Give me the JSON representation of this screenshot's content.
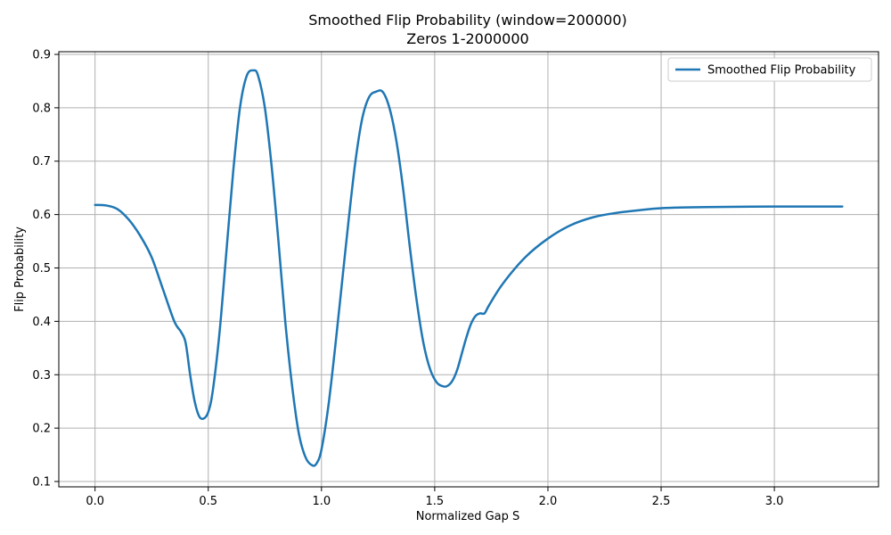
{
  "chart_data": {
    "type": "line",
    "title": "Smoothed Flip Probability (window=200000)",
    "subtitle": "Zeros 1-2000000",
    "xlabel": "Normalized Gap S",
    "ylabel": "Flip Probability",
    "xlim": [
      -0.16,
      3.46
    ],
    "ylim": [
      0.09,
      0.905
    ],
    "xticks": [
      0.0,
      0.5,
      1.0,
      1.5,
      2.0,
      2.5,
      3.0
    ],
    "xtick_labels": [
      "0.0",
      "0.5",
      "1.0",
      "1.5",
      "2.0",
      "2.5",
      "3.0"
    ],
    "yticks": [
      0.1,
      0.2,
      0.3,
      0.4,
      0.5,
      0.6,
      0.7,
      0.8,
      0.9
    ],
    "ytick_labels": [
      "0.1",
      "0.2",
      "0.3",
      "0.4",
      "0.5",
      "0.6",
      "0.7",
      "0.8",
      "0.9"
    ],
    "grid": true,
    "legend_position": "top-right",
    "colors": {
      "series": "#1f77b4",
      "grid": "#b0b0b0",
      "axis": "#000000"
    },
    "series": [
      {
        "name": "Smoothed Flip Probability",
        "x": [
          0.0,
          0.05,
          0.1,
          0.15,
          0.2,
          0.25,
          0.3,
          0.35,
          0.38,
          0.4,
          0.42,
          0.44,
          0.46,
          0.48,
          0.5,
          0.52,
          0.55,
          0.58,
          0.61,
          0.64,
          0.67,
          0.7,
          0.72,
          0.75,
          0.78,
          0.81,
          0.84,
          0.87,
          0.9,
          0.93,
          0.96,
          0.98,
          1.0,
          1.03,
          1.06,
          1.09,
          1.12,
          1.15,
          1.18,
          1.21,
          1.24,
          1.27,
          1.3,
          1.33,
          1.36,
          1.39,
          1.42,
          1.45,
          1.48,
          1.51,
          1.54,
          1.56,
          1.58,
          1.6,
          1.62,
          1.64,
          1.66,
          1.68,
          1.7,
          1.72,
          1.74,
          1.8,
          1.9,
          2.0,
          2.1,
          2.2,
          2.3,
          2.4,
          2.5,
          2.7,
          3.0,
          3.3
        ],
        "y": [
          0.618,
          0.617,
          0.61,
          0.59,
          0.56,
          0.52,
          0.46,
          0.4,
          0.38,
          0.36,
          0.3,
          0.25,
          0.222,
          0.218,
          0.23,
          0.27,
          0.38,
          0.53,
          0.68,
          0.8,
          0.86,
          0.87,
          0.86,
          0.8,
          0.69,
          0.55,
          0.4,
          0.28,
          0.19,
          0.145,
          0.13,
          0.135,
          0.16,
          0.24,
          0.35,
          0.47,
          0.59,
          0.7,
          0.78,
          0.82,
          0.83,
          0.83,
          0.8,
          0.74,
          0.65,
          0.54,
          0.44,
          0.36,
          0.31,
          0.285,
          0.278,
          0.28,
          0.29,
          0.31,
          0.34,
          0.37,
          0.395,
          0.41,
          0.415,
          0.415,
          0.43,
          0.47,
          0.52,
          0.555,
          0.58,
          0.595,
          0.603,
          0.608,
          0.612,
          0.614,
          0.615,
          0.615
        ]
      }
    ]
  }
}
